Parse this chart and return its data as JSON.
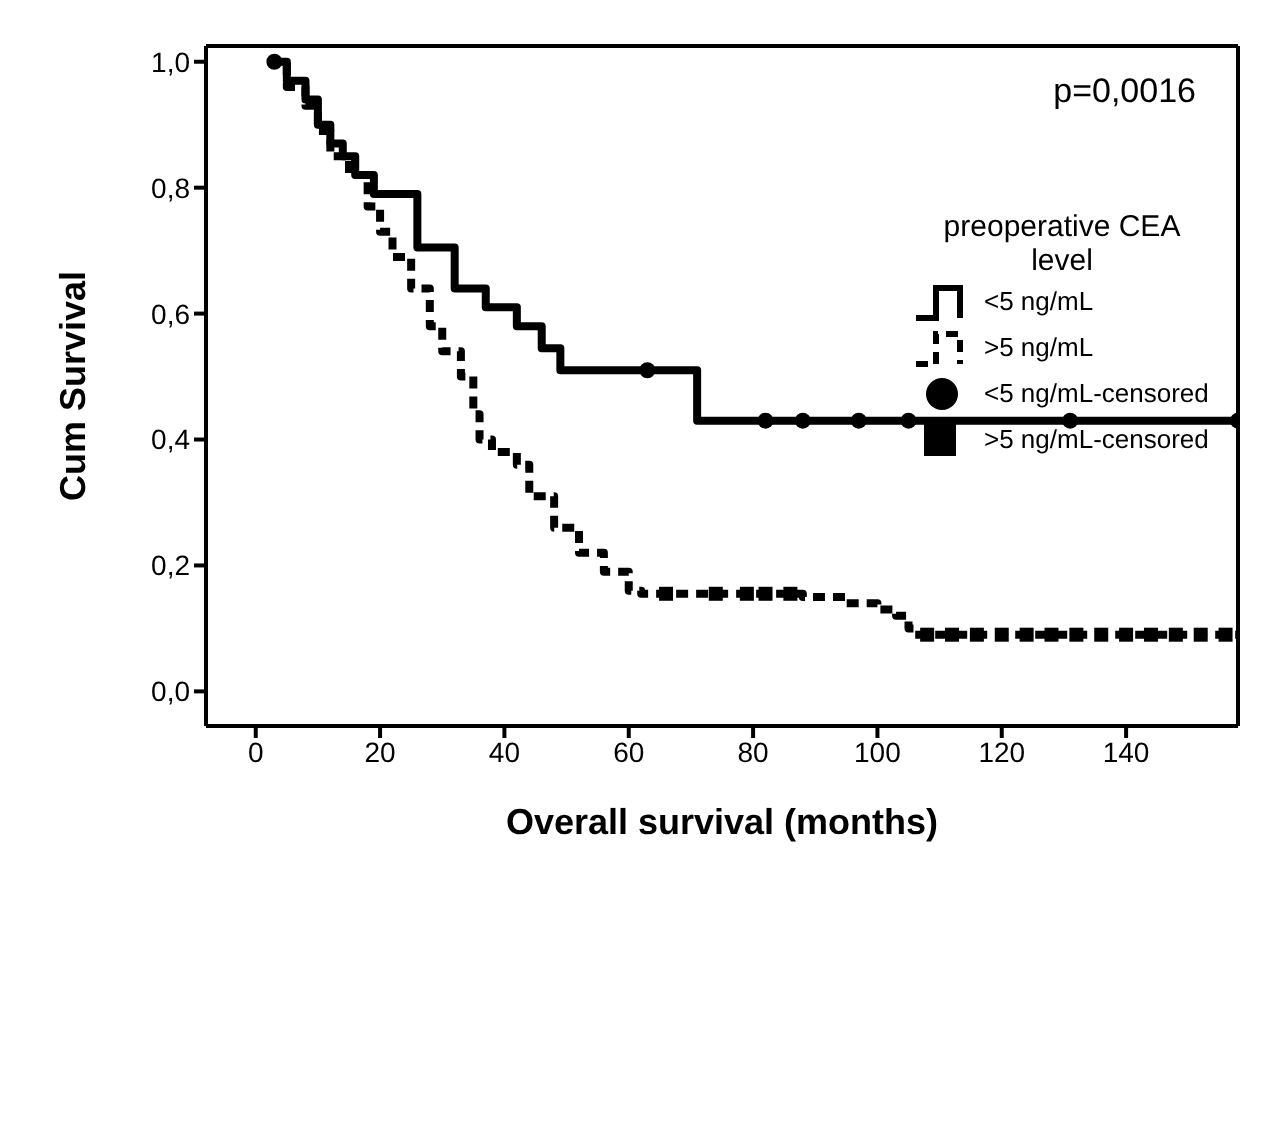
{
  "chart_data": {
    "type": "step",
    "xlabel": "Overall survival (months)",
    "ylabel": "Cum Survival",
    "legend_title": "preoperative CEA level",
    "annotations": [
      "p=0,0016"
    ],
    "xlim": [
      -8,
      158
    ],
    "xticks": [
      0,
      20,
      40,
      60,
      80,
      100,
      120,
      140
    ],
    "ylim": [
      -0.055,
      1.025
    ],
    "yticks": [
      {
        "value": 0,
        "label": "0,0"
      },
      {
        "value": 0.2,
        "label": "0,2"
      },
      {
        "value": 0.4,
        "label": "0,4"
      },
      {
        "value": 0.6,
        "label": "0,6"
      },
      {
        "value": 0.8,
        "label": "0,8"
      },
      {
        "value": 1,
        "label": "1,0"
      }
    ],
    "grid": false,
    "legend": "top right",
    "marker": "none",
    "series": [
      {
        "name": "<5 ng/mL",
        "color": "#000000",
        "line_style": "solid",
        "x": [
          2,
          5,
          8,
          10,
          12,
          14,
          16,
          19,
          26,
          32,
          37,
          42,
          46,
          49,
          71,
          158
        ],
        "values": [
          1,
          0.97,
          0.94,
          0.9,
          0.87,
          0.85,
          0.82,
          0.79,
          0.705,
          0.64,
          0.61,
          0.58,
          0.545,
          0.51,
          0.43,
          0.43
        ]
      },
      {
        "name": ">5 ng/mL",
        "color": "#000000",
        "line_style": "dashed",
        "x": [
          2,
          5,
          8,
          10,
          12,
          15,
          18,
          20,
          22,
          25,
          28,
          30,
          33,
          35,
          36,
          38,
          42,
          44,
          48,
          52,
          56,
          60,
          62,
          88,
          95,
          100,
          103,
          105,
          106,
          158
        ],
        "values": [
          1,
          0.96,
          0.93,
          0.89,
          0.85,
          0.82,
          0.77,
          0.73,
          0.69,
          0.64,
          0.58,
          0.54,
          0.5,
          0.44,
          0.4,
          0.38,
          0.36,
          0.31,
          0.26,
          0.22,
          0.19,
          0.16,
          0.155,
          0.15,
          0.14,
          0.13,
          0.12,
          0.1,
          0.09,
          0.09
        ]
      },
      {
        "name": "<5 ng/mL-censored",
        "type": "scatter",
        "marker": "circle",
        "color": "#000000",
        "x": [
          3,
          63,
          82,
          88,
          97,
          105,
          131,
          158
        ],
        "values": [
          1,
          0.51,
          0.43,
          0.43,
          0.43,
          0.43,
          0.43,
          0.43
        ]
      },
      {
        "name": ">5 ng/mL-censored",
        "type": "scatter",
        "marker": "square",
        "color": "#000000",
        "x": [
          66,
          74,
          79,
          82,
          86,
          108,
          112,
          116,
          120,
          124,
          128,
          132,
          136,
          140,
          144,
          148,
          152,
          156
        ],
        "values": [
          0.155,
          0.155,
          0.155,
          0.155,
          0.155,
          0.09,
          0.09,
          0.09,
          0.09,
          0.09,
          0.09,
          0.09,
          0.09,
          0.09,
          0.09,
          0.09,
          0.09,
          0.09
        ]
      }
    ]
  }
}
